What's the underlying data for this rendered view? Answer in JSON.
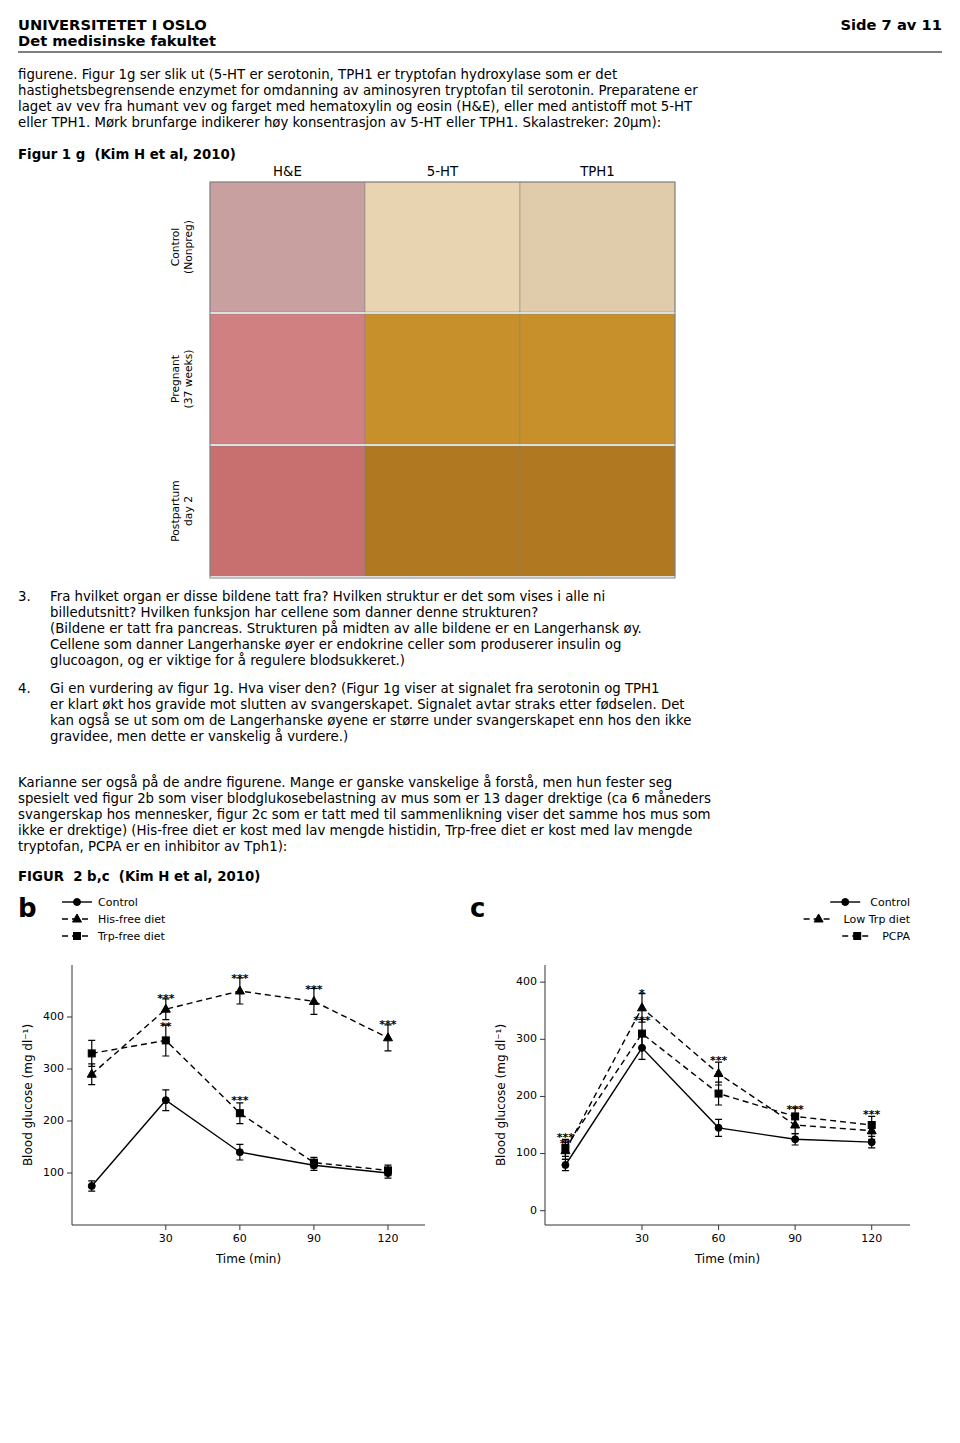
{
  "page": {
    "text_color": "#000000",
    "background_color": "#ffffff",
    "header_left": [
      "UNIVERSITETET I OSLO",
      "Det medisinske fakultet"
    ],
    "header_right": "Side 7 av 11",
    "paragraph1": [
      "figurene. Figur 1g ser slik ut (5-HT er serotonin, TPH1 er tryptofan hydroxylase som er det",
      "hastighetsbegrensende enzymet for omdanning av aminosyren tryptofan til serotonin. Preparatene er",
      "laget av vev fra humant vev og farget med hematoxylin og eosin (H&E), eller med antistoff mot 5-HT",
      "eller TPH1. Mørk brunfarge indikerer høy konsentrasjon av 5-HT eller TPH1. Skalastreker: 20μm):"
    ],
    "fig1g": {
      "title": "Figur 1 g  (Kim H et al, 2010)",
      "columns": [
        "H&E",
        "5-HT",
        "TPH1"
      ],
      "rows": [
        [
          "Control",
          "(Nonpreg)"
        ],
        [
          "Pregnant",
          "(37 weeks)"
        ],
        [
          "Postpartum",
          "day 2"
        ]
      ],
      "cell_colors": [
        [
          "#c8a0a0",
          "#e8d4b0",
          "#e0ccaa"
        ],
        [
          "#d08080",
          "#c8902a",
          "#c8902a"
        ],
        [
          "#c87070",
          "#b07820",
          "#b07820"
        ]
      ]
    },
    "question3": {
      "number": "3.",
      "lines": [
        "Fra hvilket organ er disse bildene tatt fra? Hvilken struktur er det som vises i alle ni",
        "billedutsnitt? Hvilken funksjon har cellene som danner denne strukturen?",
        "(Bildene er tatt fra pancreas. Strukturen på midten av alle bildene er en Langerhansk øy.",
        "Cellene som danner Langerhanske øyer er endokrine celler som produserer insulin og",
        "glucoagon, og er viktige for å regulere blodsukkeret.)"
      ]
    },
    "question4": {
      "number": "4.",
      "lines": [
        "Gi en vurdering av figur 1g. Hva viser den? (Figur 1g viser at signalet fra serotonin og TPH1",
        "er klart økt hos gravide mot slutten av svangerskapet. Signalet avtar straks etter fødselen. Det",
        "kan også se ut som om de Langerhanske øyene er større under svangerskapet enn hos den ikke",
        "gravidee, men dette er vanskelig å vurdere.)"
      ]
    },
    "paragraph2": [
      "Karianne ser også på de andre figurene. Mange er ganske vanskelige å forstå, men hun fester seg",
      "spesielt ved figur 2b som viser blodglukosebelastning av mus som er 13 dager drektige (ca 6 måneders",
      "svangerskap hos mennesker, figur 2c som er tatt med til sammenlikning viser det samme hos mus som",
      "ikke er drektige) (His-free diet er kost med lav mengde histidin, Trp-free diet er kost med lav mengde",
      "tryptofan, PCPA er en inhibitor av Tph1):"
    ],
    "figure2_label": "FIGUR  2 b,c  (Kim H et al, 2010)"
  },
  "chart_data": [
    {
      "type": "line",
      "title": "b",
      "xlabel": "Time (min)",
      "ylabel": "Blood glucose (mg dl⁻¹)",
      "x": [
        0,
        30,
        60,
        90,
        120
      ],
      "xlim": [
        -8,
        135
      ],
      "xticks": [
        30,
        60,
        90,
        120
      ],
      "ylim": [
        0,
        500
      ],
      "yticks": [
        100,
        200,
        300,
        400
      ],
      "grid": false,
      "legend": "upper left",
      "series": [
        {
          "name": "Control",
          "color": "#000000",
          "marker": "circle",
          "line_style": "solid",
          "values": [
            75,
            240,
            140,
            115,
            100
          ],
          "errors": [
            10,
            20,
            15,
            10,
            10
          ]
        },
        {
          "name": "His-free diet",
          "color": "#000000",
          "marker": "triangle",
          "line_style": "dashed",
          "values": [
            290,
            415,
            450,
            430,
            360
          ],
          "errors": [
            20,
            20,
            25,
            25,
            25
          ]
        },
        {
          "name": "Trp-free diet",
          "color": "#000000",
          "marker": "square",
          "line_style": "dashed",
          "values": [
            330,
            355,
            215,
            120,
            105
          ],
          "errors": [
            25,
            30,
            20,
            10,
            10
          ]
        }
      ],
      "annotations": [
        {
          "x": 30,
          "y": 425,
          "text": "***"
        },
        {
          "x": 30,
          "y": 372,
          "text": "**"
        },
        {
          "x": 60,
          "y": 463,
          "text": "***"
        },
        {
          "x": 60,
          "y": 228,
          "text": "***"
        },
        {
          "x": 90,
          "y": 443,
          "text": "***"
        },
        {
          "x": 120,
          "y": 375,
          "text": "***"
        }
      ]
    },
    {
      "type": "line",
      "title": "c",
      "xlabel": "Time (min)",
      "ylabel": "Blood glucose (mg dl⁻¹)",
      "x": [
        0,
        30,
        60,
        90,
        120
      ],
      "xlim": [
        -8,
        135
      ],
      "xticks": [
        30,
        60,
        90,
        120
      ],
      "ylim": [
        -25,
        430
      ],
      "yticks": [
        0,
        100,
        200,
        300,
        400
      ],
      "grid": false,
      "legend": "upper right",
      "series": [
        {
          "name": "Control",
          "color": "#000000",
          "marker": "circle",
          "line_style": "solid",
          "values": [
            80,
            285,
            145,
            125,
            120
          ],
          "errors": [
            10,
            20,
            15,
            10,
            10
          ]
        },
        {
          "name": "Low Trp diet",
          "color": "#000000",
          "marker": "triangle",
          "line_style": "dashed",
          "values": [
            105,
            355,
            240,
            150,
            140
          ],
          "errors": [
            15,
            25,
            20,
            15,
            15
          ]
        },
        {
          "name": "PCPA",
          "color": "#000000",
          "marker": "square",
          "line_style": "dashed",
          "values": [
            110,
            310,
            205,
            165,
            150
          ],
          "errors": [
            15,
            25,
            20,
            15,
            15
          ]
        }
      ],
      "annotations": [
        {
          "x": 0,
          "y": 118,
          "text": "***"
        },
        {
          "x": 0,
          "y": 108,
          "text": "**"
        },
        {
          "x": 30,
          "y": 370,
          "text": "*"
        },
        {
          "x": 30,
          "y": 323,
          "text": "***"
        },
        {
          "x": 60,
          "y": 253,
          "text": "***"
        },
        {
          "x": 90,
          "y": 168,
          "text": "***"
        },
        {
          "x": 120,
          "y": 158,
          "text": "***"
        }
      ]
    }
  ]
}
